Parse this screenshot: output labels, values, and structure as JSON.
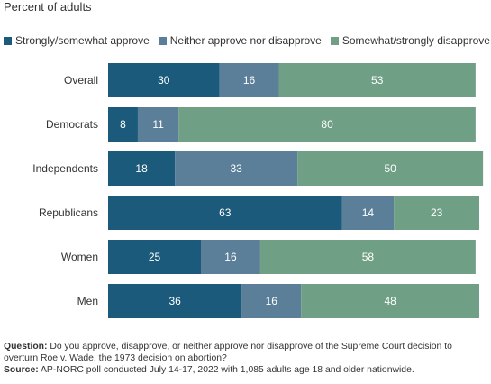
{
  "subtitle": "Percent of adults",
  "legend": [
    {
      "label": "Strongly/somewhat approve",
      "color": "#1b5a7a"
    },
    {
      "label": "Neither approve nor disapprove",
      "color": "#5b7f99"
    },
    {
      "label": "Somewhat/strongly disapprove",
      "color": "#6f9f84"
    }
  ],
  "footnote": {
    "question_label": "Question:",
    "question_text": " Do you approve, disapprove, or neither approve nor disapprove of the Supreme Court decision to overturn Roe v. Wade, the 1973 decision on abortion?",
    "source_label": "Source:",
    "source_text": " AP-NORC poll conducted July 14-17, 2022 with 1,085 adults age 18 and older nationwide."
  },
  "chart_data": {
    "type": "bar",
    "orientation": "horizontal",
    "stacked": true,
    "categories": [
      "Overall",
      "Democrats",
      "Independents",
      "Republicans",
      "Women",
      "Men"
    ],
    "series": [
      {
        "name": "Strongly/somewhat approve",
        "color": "#1b5a7a",
        "values": [
          30,
          8,
          18,
          63,
          25,
          36
        ]
      },
      {
        "name": "Neither approve nor disapprove",
        "color": "#5b7f99",
        "values": [
          16,
          11,
          33,
          14,
          16,
          16
        ]
      },
      {
        "name": "Somewhat/strongly disapprove",
        "color": "#6f9f84",
        "values": [
          53,
          80,
          50,
          23,
          58,
          48
        ]
      }
    ],
    "xlim": [
      0,
      100
    ],
    "grid": false,
    "legend_position": "top-left"
  }
}
